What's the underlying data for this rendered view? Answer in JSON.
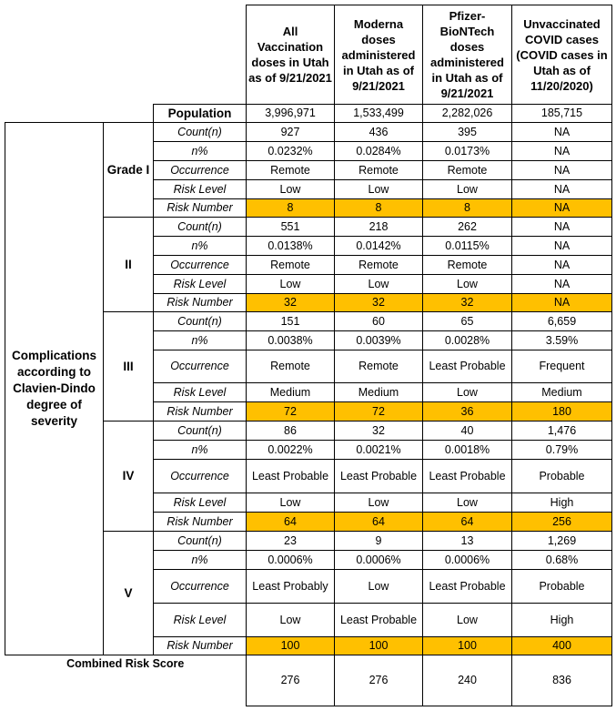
{
  "columns": [
    "All Vaccination doses in Utah as of 9/21/2021",
    "Moderna doses administered in Utah as of 9/21/2021",
    "Pfizer-BioNTech doses administered in Utah as of 9/21/2021",
    "Unvaccinated COVID cases (COVID cases in Utah as of 11/20/2020)"
  ],
  "population": {
    "label": "Population",
    "values": [
      "3,996,971",
      "1,533,499",
      "2,282,026",
      "185,715"
    ]
  },
  "group_label": "Complications according to Clavien-Dindo degree of severity",
  "row_labels": [
    "Count(n)",
    "n%",
    "Occurrence",
    "Risk Level",
    "Risk Number"
  ],
  "grades": [
    {
      "label": "Grade I",
      "rows": [
        [
          "927",
          "436",
          "395",
          "NA"
        ],
        [
          "0.0232%",
          "0.0284%",
          "0.0173%",
          "NA"
        ],
        [
          "Remote",
          "Remote",
          "Remote",
          "NA"
        ],
        [
          "Low",
          "Low",
          "Low",
          "NA"
        ],
        [
          "8",
          "8",
          "8",
          "NA"
        ]
      ]
    },
    {
      "label": "II",
      "rows": [
        [
          "551",
          "218",
          "262",
          "NA"
        ],
        [
          "0.0138%",
          "0.0142%",
          "0.0115%",
          "NA"
        ],
        [
          "Remote",
          "Remote",
          "Remote",
          "NA"
        ],
        [
          "Low",
          "Low",
          "Low",
          "NA"
        ],
        [
          "32",
          "32",
          "32",
          "NA"
        ]
      ]
    },
    {
      "label": "III",
      "rows": [
        [
          "151",
          "60",
          "65",
          "6,659"
        ],
        [
          "0.0038%",
          "0.0039%",
          "0.0028%",
          "3.59%"
        ],
        [
          "Remote",
          "Remote",
          "Least Probable",
          "Frequent"
        ],
        [
          "Medium",
          "Medium",
          "Low",
          "Medium"
        ],
        [
          "72",
          "72",
          "36",
          "180"
        ]
      ]
    },
    {
      "label": "IV",
      "rows": [
        [
          "86",
          "32",
          "40",
          "1,476"
        ],
        [
          "0.0022%",
          "0.0021%",
          "0.0018%",
          "0.79%"
        ],
        [
          "Least Probable",
          "Least Probable",
          "Least Probable",
          "Probable"
        ],
        [
          "Low",
          "Low",
          "Low",
          "High"
        ],
        [
          "64",
          "64",
          "64",
          "256"
        ]
      ]
    },
    {
      "label": "V",
      "rows": [
        [
          "23",
          "9",
          "13",
          "1,269"
        ],
        [
          "0.0006%",
          "0.0006%",
          "0.0006%",
          "0.68%"
        ],
        [
          "Least Probably",
          "Low",
          "Least Probable",
          "Probable"
        ],
        [
          "Low",
          "Least Probable",
          "Low",
          "High"
        ],
        [
          "100",
          "100",
          "100",
          "400"
        ]
      ]
    }
  ],
  "combined": {
    "label": "Combined Risk Score",
    "values": [
      "276",
      "276",
      "240",
      "836"
    ]
  },
  "colors": {
    "highlight": "#ffc000"
  }
}
